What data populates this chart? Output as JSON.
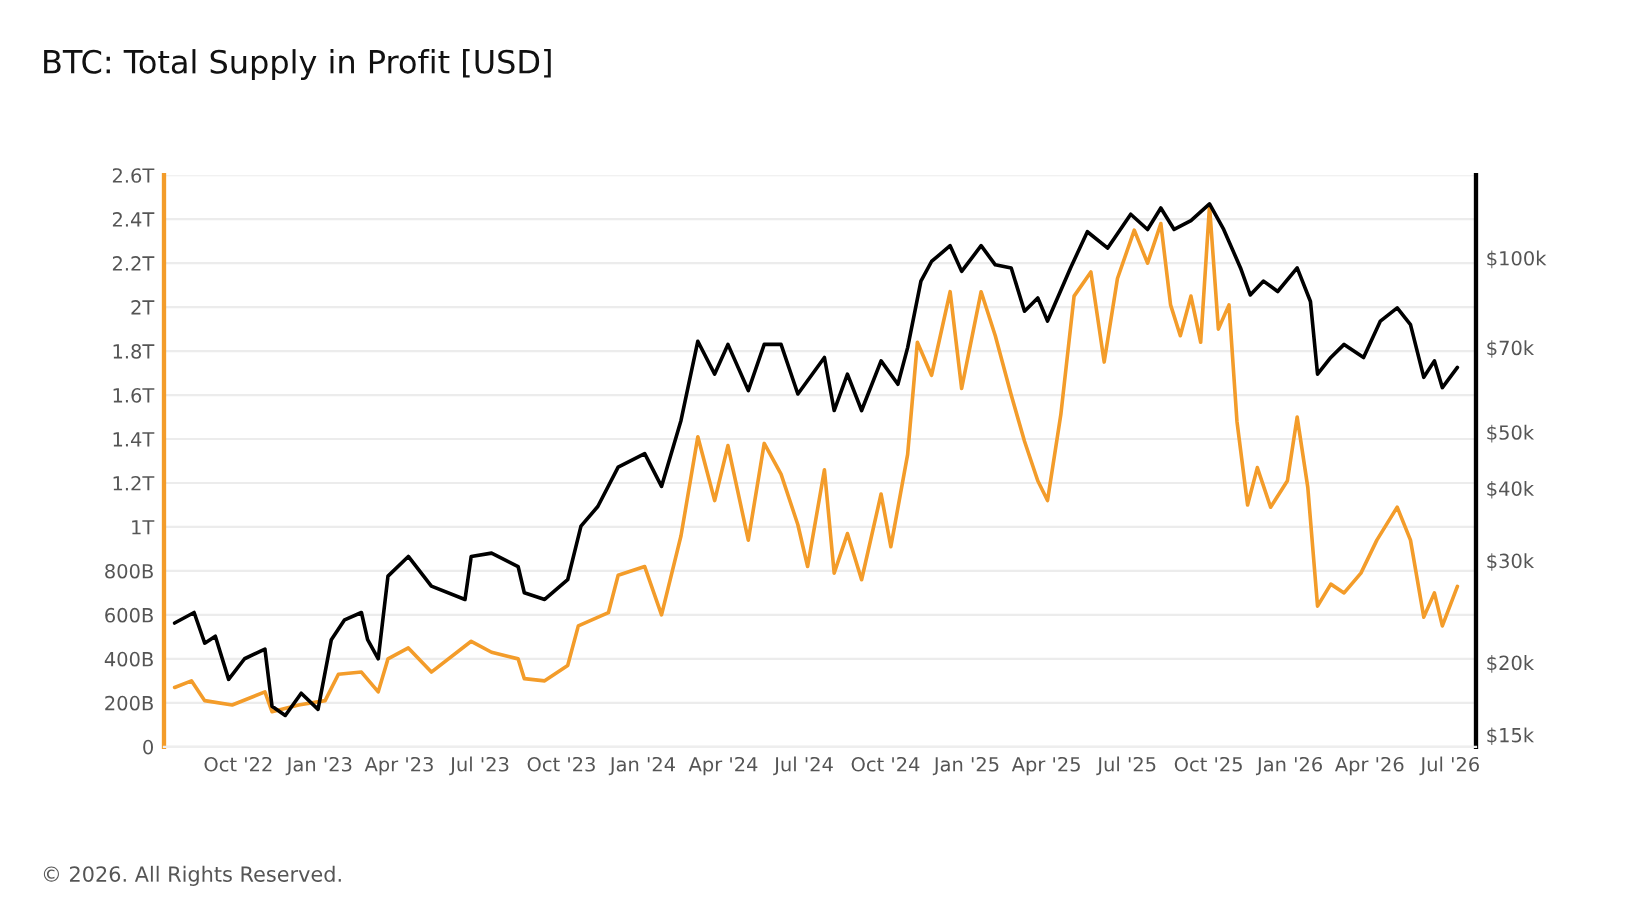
{
  "chart_data": {
    "type": "line",
    "title": "BTC: Total Supply in Profit [USD]",
    "annotations": [
      "© 2026. All Rights Reserved."
    ],
    "xlim": [
      "2022-07-09",
      "2026-07-30"
    ],
    "xticks": [
      {
        "value": "2022-10-01",
        "label": "Oct '22"
      },
      {
        "value": "2023-01-01",
        "label": "Jan '23"
      },
      {
        "value": "2023-04-01",
        "label": "Apr '23"
      },
      {
        "value": "2023-07-01",
        "label": "Jul '23"
      },
      {
        "value": "2023-10-01",
        "label": "Oct '23"
      },
      {
        "value": "2024-01-01",
        "label": "Jan '24"
      },
      {
        "value": "2024-04-01",
        "label": "Apr '24"
      },
      {
        "value": "2024-07-01",
        "label": "Jul '24"
      },
      {
        "value": "2024-10-01",
        "label": "Oct '24"
      },
      {
        "value": "2025-01-01",
        "label": "Jan '25"
      },
      {
        "value": "2025-04-01",
        "label": "Apr '25"
      },
      {
        "value": "2025-07-01",
        "label": "Jul '25"
      },
      {
        "value": "2025-10-01",
        "label": "Oct '25"
      },
      {
        "value": "2026-01-01",
        "label": "Jan '26"
      },
      {
        "value": "2026-04-01",
        "label": "Apr '26"
      },
      {
        "value": "2026-07-01",
        "label": "Jul '26"
      }
    ],
    "ylim": [
      0,
      2600000000000
    ],
    "yticks": [
      {
        "value": 0,
        "label": "0"
      },
      {
        "value": 200000000000,
        "label": "200B"
      },
      {
        "value": 400000000000,
        "label": "400B"
      },
      {
        "value": 600000000000,
        "label": "600B"
      },
      {
        "value": 800000000000,
        "label": "800B"
      },
      {
        "value": 1000000000000,
        "label": "1T"
      },
      {
        "value": 1200000000000,
        "label": "1.2T"
      },
      {
        "value": 1400000000000,
        "label": "1.4T"
      },
      {
        "value": 1600000000000,
        "label": "1.6T"
      },
      {
        "value": 1800000000000,
        "label": "1.8T"
      },
      {
        "value": 2000000000000,
        "label": "2T"
      },
      {
        "value": 2200000000000,
        "label": "2.2T"
      },
      {
        "value": 2400000000000,
        "label": "2.4T"
      },
      {
        "value": 2600000000000,
        "label": "2.6T"
      }
    ],
    "y2lim": [
      14300,
      139000
    ],
    "y2ticks": [
      {
        "value": 15000,
        "label": "$15k"
      },
      {
        "value": 20000,
        "label": "$20k"
      },
      {
        "value": 30000,
        "label": "$30k"
      },
      {
        "value": 40000,
        "label": "$40k"
      },
      {
        "value": 50000,
        "label": "$50k"
      },
      {
        "value": 70000,
        "label": "$70k"
      },
      {
        "value": 100000,
        "label": "$100k"
      }
    ],
    "log": "y2",
    "grid": "y",
    "line_style": "solid",
    "marker": "none",
    "series": [
      {
        "color": "#f39c2a",
        "x": [
          "2022-07-21",
          "2022-08-09",
          "2022-08-24",
          "2022-09-24",
          "2022-10-31",
          "2022-11-08",
          "2022-12-08",
          "2023-01-07",
          "2023-01-22",
          "2023-02-17",
          "2023-03-08",
          "2023-03-19",
          "2023-04-11",
          "2023-05-07",
          "2023-06-21",
          "2023-07-14",
          "2023-08-13",
          "2023-08-20",
          "2023-09-12",
          "2023-10-08",
          "2023-10-20",
          "2023-11-23",
          "2023-12-04",
          "2024-01-03",
          "2024-01-22",
          "2024-02-13",
          "2024-03-03",
          "2024-03-22",
          "2024-04-06",
          "2024-04-29",
          "2024-05-17",
          "2024-06-05",
          "2024-06-24",
          "2024-07-05",
          "2024-07-24",
          "2024-08-04",
          "2024-08-19",
          "2024-09-04",
          "2024-09-26",
          "2024-10-07",
          "2024-10-26",
          "2024-11-06",
          "2024-11-22",
          "2024-12-13",
          "2024-12-26",
          "2025-01-17",
          "2025-02-02",
          "2025-02-20",
          "2025-03-07",
          "2025-03-22",
          "2025-04-02",
          "2025-04-17",
          "2025-05-02",
          "2025-05-21",
          "2025-06-05",
          "2025-06-20",
          "2025-07-09",
          "2025-07-24",
          "2025-08-08",
          "2025-08-19",
          "2025-08-30",
          "2025-09-11",
          "2025-09-22",
          "2025-10-02",
          "2025-10-12",
          "2025-10-24",
          "2025-11-02",
          "2025-11-14",
          "2025-11-25",
          "2025-12-10",
          "2025-12-29",
          "2026-01-09",
          "2026-01-21",
          "2026-02-01",
          "2026-02-16",
          "2026-03-03",
          "2026-03-22",
          "2026-04-09",
          "2026-05-02",
          "2026-05-17",
          "2026-06-01",
          "2026-06-13",
          "2026-06-22",
          "2026-07-09"
        ],
        "values": [
          270000000000,
          300000000000,
          210000000000,
          190000000000,
          250000000000,
          160000000000,
          190000000000,
          210000000000,
          330000000000,
          340000000000,
          250000000000,
          400000000000,
          450000000000,
          340000000000,
          480000000000,
          430000000000,
          400000000000,
          310000000000,
          300000000000,
          370000000000,
          550000000000,
          610000000000,
          780000000000,
          820000000000,
          600000000000,
          960000000000,
          1410000000000,
          1120000000000,
          1370000000000,
          940000000000,
          1380000000000,
          1240000000000,
          1010000000000,
          820000000000,
          1260000000000,
          790000000000,
          970000000000,
          760000000000,
          1150000000000,
          910000000000,
          1330000000000,
          1840000000000,
          1690000000000,
          2070000000000,
          1630000000000,
          2070000000000,
          1870000000000,
          1600000000000,
          1390000000000,
          1210000000000,
          1120000000000,
          1510000000000,
          2050000000000,
          2160000000000,
          1750000000000,
          2130000000000,
          2350000000000,
          2200000000000,
          2380000000000,
          2010000000000,
          1870000000000,
          2050000000000,
          1840000000000,
          2460000000000,
          1900000000000,
          2010000000000,
          1480000000000,
          1100000000000,
          1270000000000,
          1090000000000,
          1210000000000,
          1500000000000,
          1180000000000,
          640000000000,
          740000000000,
          700000000000,
          790000000000,
          940000000000,
          1090000000000,
          940000000000,
          590000000000,
          700000000000,
          550000000000,
          730000000000
        ]
      },
      {
        "color": "#000000",
        "axis": "y2",
        "x": [
          "2022-07-21",
          "2022-08-12",
          "2022-08-24",
          "2022-09-05",
          "2022-09-20",
          "2022-10-08",
          "2022-10-31",
          "2022-11-08",
          "2022-11-23",
          "2022-12-11",
          "2022-12-30",
          "2023-01-14",
          "2023-01-29",
          "2023-02-17",
          "2023-02-24",
          "2023-03-08",
          "2023-03-19",
          "2023-04-11",
          "2023-05-07",
          "2023-06-14",
          "2023-06-21",
          "2023-07-14",
          "2023-08-13",
          "2023-08-20",
          "2023-09-12",
          "2023-10-08",
          "2023-10-23",
          "2023-11-11",
          "2023-12-04",
          "2024-01-03",
          "2024-01-22",
          "2024-02-13",
          "2024-03-03",
          "2024-03-22",
          "2024-04-06",
          "2024-04-29",
          "2024-05-17",
          "2024-06-05",
          "2024-06-24",
          "2024-07-24",
          "2024-08-04",
          "2024-08-19",
          "2024-09-04",
          "2024-09-26",
          "2024-10-15",
          "2024-10-26",
          "2024-11-10",
          "2024-11-22",
          "2024-12-13",
          "2024-12-26",
          "2025-01-17",
          "2025-02-02",
          "2025-02-20",
          "2025-03-07",
          "2025-03-22",
          "2025-04-02",
          "2025-04-28",
          "2025-05-17",
          "2025-06-09",
          "2025-07-05",
          "2025-07-24",
          "2025-08-08",
          "2025-08-23",
          "2025-09-11",
          "2025-10-02",
          "2025-10-18",
          "2025-11-06",
          "2025-11-17",
          "2025-12-02",
          "2025-12-18",
          "2026-01-09",
          "2026-01-24",
          "2026-02-01",
          "2026-02-16",
          "2026-03-03",
          "2026-03-25",
          "2026-04-13",
          "2026-05-02",
          "2026-05-17",
          "2026-06-01",
          "2026-06-13",
          "2026-06-22",
          "2026-07-09"
        ],
        "values": [
          23400,
          24400,
          21600,
          22200,
          18700,
          20300,
          21100,
          16800,
          16200,
          17700,
          16600,
          21900,
          23700,
          24400,
          21900,
          20300,
          28200,
          30500,
          27100,
          25700,
          30500,
          30900,
          29300,
          26400,
          25700,
          27800,
          34400,
          37200,
          43500,
          45900,
          40300,
          52400,
          71800,
          63000,
          70900,
          59000,
          70900,
          70900,
          58200,
          67300,
          54500,
          63000,
          54500,
          66400,
          60500,
          70000,
          91200,
          98600,
          105000,
          94800,
          105000,
          97300,
          96100,
          80900,
          85300,
          77800,
          96100,
          111000,
          104000,
          119000,
          112000,
          122000,
          112000,
          116000,
          124000,
          112000,
          96100,
          86300,
          91200,
          87500,
          96100,
          84100,
          63000,
          67300,
          70900,
          67300,
          77800,
          82000,
          76700,
          62200,
          66400,
          59700,
          64700
        ]
      }
    ]
  }
}
